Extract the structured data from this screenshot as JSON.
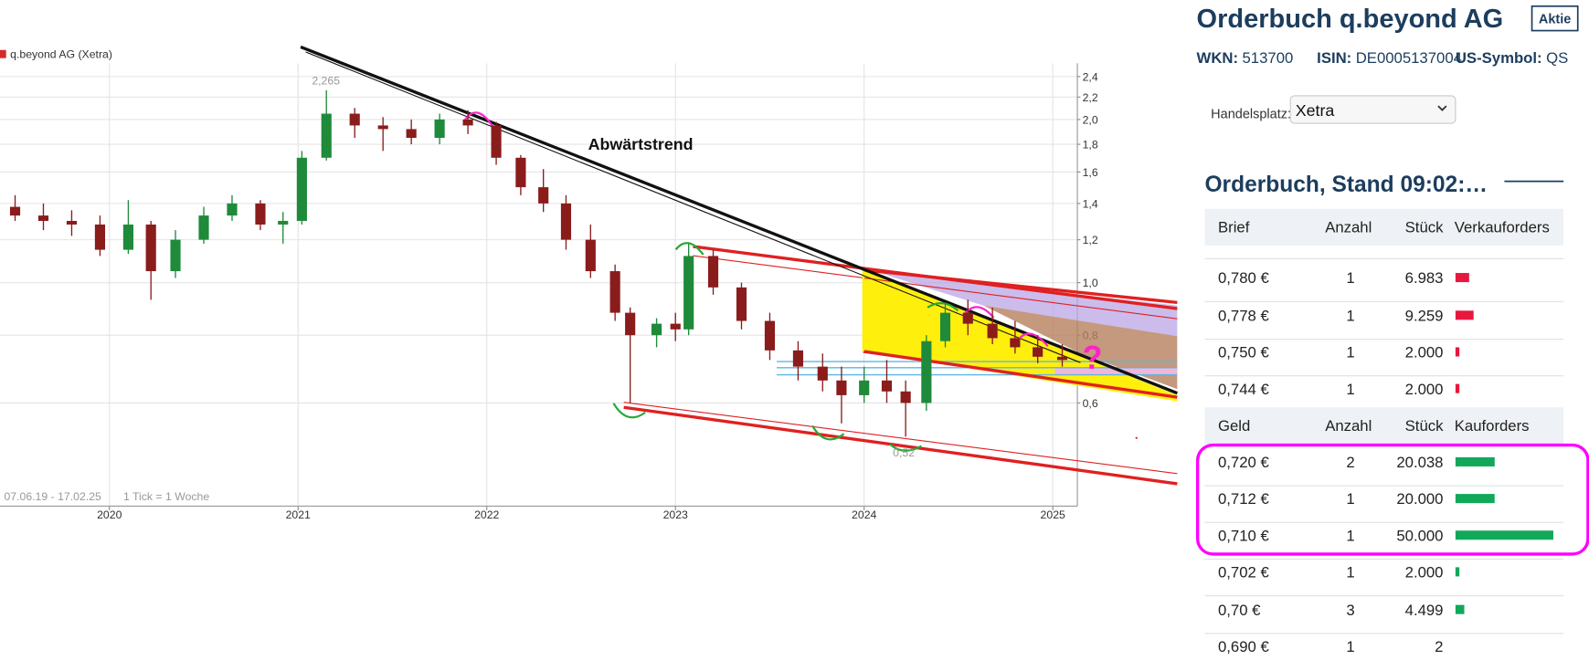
{
  "chart_data": {
    "type": "candlestick",
    "series": [
      {
        "name": "q.beyond AG (Xetra)",
        "color": "#d42a2a",
        "up_color": "#1f8a3a",
        "down_color": "#8a1c1c",
        "x": [
          2019.5,
          2019.65,
          2019.8,
          2019.95,
          2020.1,
          2020.22,
          2020.35,
          2020.5,
          2020.65,
          2020.8,
          2020.92,
          2021.02,
          2021.15,
          2021.3,
          2021.45,
          2021.6,
          2021.75,
          2021.9,
          2022.05,
          2022.18,
          2022.3,
          2022.42,
          2022.55,
          2022.68,
          2022.76,
          2022.9,
          2023.0,
          2023.07,
          2023.2,
          2023.35,
          2023.5,
          2023.65,
          2023.78,
          2023.88,
          2024.0,
          2024.12,
          2024.22,
          2024.33,
          2024.43,
          2024.55,
          2024.68,
          2024.8,
          2024.92,
          2025.05
        ],
        "open": [
          1.38,
          1.33,
          1.3,
          1.28,
          1.15,
          1.28,
          1.05,
          1.2,
          1.33,
          1.4,
          1.28,
          1.3,
          1.7,
          2.05,
          1.95,
          1.92,
          1.85,
          2.0,
          1.95,
          1.7,
          1.5,
          1.4,
          1.2,
          1.05,
          0.88,
          0.8,
          0.84,
          0.82,
          1.12,
          0.98,
          0.85,
          0.75,
          0.7,
          0.66,
          0.62,
          0.66,
          0.63,
          0.6,
          0.78,
          0.88,
          0.84,
          0.79,
          0.76,
          0.73
        ],
        "high": [
          1.45,
          1.4,
          1.36,
          1.33,
          1.42,
          1.3,
          1.25,
          1.38,
          1.45,
          1.42,
          1.35,
          1.75,
          2.265,
          2.1,
          2.02,
          2.0,
          2.05,
          2.08,
          1.98,
          1.72,
          1.62,
          1.45,
          1.28,
          1.08,
          0.9,
          0.86,
          0.88,
          1.18,
          1.15,
          1.0,
          0.88,
          0.78,
          0.74,
          0.7,
          0.7,
          0.72,
          0.66,
          0.8,
          0.92,
          0.93,
          0.9,
          0.85,
          0.8,
          0.77
        ],
        "low": [
          1.3,
          1.25,
          1.22,
          1.12,
          1.13,
          0.93,
          1.02,
          1.18,
          1.3,
          1.25,
          1.18,
          1.28,
          1.68,
          1.85,
          1.75,
          1.8,
          1.8,
          1.88,
          1.65,
          1.45,
          1.35,
          1.15,
          1.02,
          0.85,
          0.6,
          0.76,
          0.78,
          0.8,
          0.95,
          0.82,
          0.72,
          0.66,
          0.63,
          0.55,
          0.6,
          0.6,
          0.52,
          0.58,
          0.76,
          0.8,
          0.77,
          0.74,
          0.71,
          0.7
        ],
        "close": [
          1.33,
          1.3,
          1.28,
          1.15,
          1.28,
          1.05,
          1.2,
          1.33,
          1.4,
          1.28,
          1.3,
          1.7,
          2.05,
          1.95,
          1.92,
          1.85,
          2.0,
          1.95,
          1.7,
          1.5,
          1.4,
          1.2,
          1.05,
          0.88,
          0.8,
          0.84,
          0.82,
          1.12,
          0.98,
          0.85,
          0.75,
          0.7,
          0.66,
          0.62,
          0.66,
          0.63,
          0.6,
          0.78,
          0.88,
          0.84,
          0.79,
          0.76,
          0.73,
          0.72
        ]
      }
    ],
    "xlim": [
      2019.42,
      2025.13
    ],
    "xticks": [
      2020,
      2021,
      2022,
      2023,
      2024,
      2025
    ],
    "ylim": [
      0.387,
      2.54
    ],
    "log_y": true,
    "grid": true,
    "yticks": [
      {
        "value": 0.6,
        "label": "0,6"
      },
      {
        "value": 0.8,
        "label": "0,8"
      },
      {
        "value": 1.0,
        "label": "1,0"
      },
      {
        "value": 1.2,
        "label": "1,2"
      },
      {
        "value": 1.4,
        "label": "1,4"
      },
      {
        "value": 1.6,
        "label": "1,6"
      },
      {
        "value": 1.8,
        "label": "1,8"
      },
      {
        "value": 2.0,
        "label": "2,0"
      },
      {
        "value": 2.2,
        "label": "2,2"
      },
      {
        "value": 2.4,
        "label": "2,4"
      }
    ],
    "annotations": [
      "Abwärtstrend",
      "2,265",
      "0,52",
      "?",
      "07.06.19 - 17.02.25",
      "1 Tick = 1 Woche"
    ]
  },
  "header": {
    "title": "Orderbuch q.beyond AG",
    "badge": "Aktie",
    "ids": [
      {
        "label": "WKN:",
        "value": "513700"
      },
      {
        "label": "ISIN:",
        "value": "DE0005137004"
      },
      {
        "label": "US-Symbol:",
        "value": "QS"
      }
    ]
  },
  "venue": {
    "label": "Handelsplatz:",
    "selected": "Xetra"
  },
  "orderbook": {
    "title": "Orderbuch, Stand 09:02:…",
    "ask": {
      "bar_color": "#e8173d",
      "columns": [
        "Brief",
        "Anzahl",
        "Stück",
        "Verkauforders"
      ],
      "rows": [
        [
          "0,780 €",
          "1",
          "6.983"
        ],
        [
          "0,778 €",
          "1",
          "9.259"
        ],
        [
          "0,750 €",
          "1",
          "2.000"
        ],
        [
          "0,744 €",
          "1",
          "2.000"
        ]
      ]
    },
    "bid": {
      "bar_color": "#12a85a",
      "columns": [
        "Geld",
        "Anzahl",
        "Stück",
        "Kauforders"
      ],
      "rows": [
        [
          "0,720 €",
          "2",
          "20.038"
        ],
        [
          "0,712 €",
          "1",
          "20.000"
        ],
        [
          "0,710 €",
          "1",
          "50.000"
        ],
        [
          "0,702 €",
          "1",
          "2.000"
        ],
        [
          "0,70 €",
          "3",
          "4.499"
        ],
        [
          "0,690 €",
          "1",
          "2"
        ]
      ]
    }
  }
}
